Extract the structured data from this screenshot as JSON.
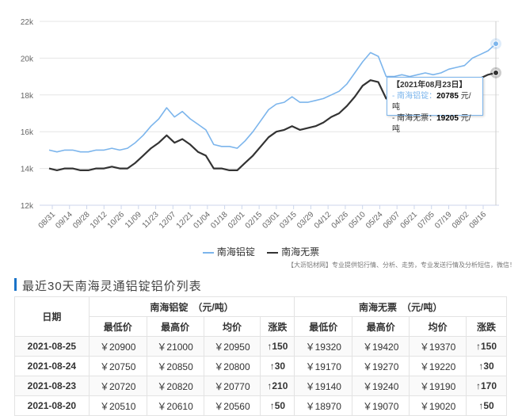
{
  "chart_data": {
    "type": "line",
    "y_ticks": [
      "12k",
      "14k",
      "16k",
      "18k",
      "20k",
      "22k"
    ],
    "ylim": [
      12000,
      22000
    ],
    "x_tick_labels": [
      "08/31",
      "09/14",
      "09/28",
      "10/12",
      "10/26",
      "11/09",
      "11/23",
      "12/07",
      "12/21",
      "01/04",
      "01/18",
      "02/01",
      "02/15",
      "03/01",
      "03/15",
      "03/29",
      "04/12",
      "04/26",
      "05/10",
      "05/24",
      "06/07",
      "06/21",
      "07/05",
      "07/19",
      "08/02",
      "08/16"
    ],
    "series": [
      {
        "name": "南海铝锭",
        "color": "#7cb5ec",
        "values": [
          15000,
          14900,
          15000,
          15000,
          14900,
          14900,
          15000,
          15000,
          15100,
          15000,
          15100,
          15400,
          15800,
          16300,
          16700,
          17300,
          16800,
          17100,
          16700,
          16400,
          16100,
          15300,
          15200,
          15200,
          15100,
          15500,
          16000,
          16600,
          17200,
          17500,
          17600,
          17900,
          17600,
          17600,
          17700,
          17800,
          18000,
          18200,
          18600,
          19200,
          19800,
          20300,
          20100,
          19000,
          19000,
          19100,
          19000,
          19100,
          19200,
          19100,
          19200,
          19400,
          19500,
          19600,
          20000,
          20200,
          20400,
          20785
        ]
      },
      {
        "name": "南海无票",
        "color": "#333333",
        "values": [
          14000,
          13900,
          14000,
          14000,
          13900,
          13900,
          14000,
          14000,
          14100,
          14000,
          14000,
          14300,
          14700,
          15100,
          15400,
          15800,
          15400,
          15600,
          15300,
          14900,
          14700,
          14000,
          14000,
          13900,
          13900,
          14300,
          14700,
          15200,
          15700,
          16000,
          16100,
          16300,
          16100,
          16200,
          16300,
          16500,
          16800,
          17000,
          17400,
          17900,
          18500,
          18800,
          18700,
          17800,
          17800,
          17900,
          17800,
          17900,
          18000,
          18000,
          18100,
          18200,
          18300,
          18500,
          18700,
          18900,
          19100,
          19205
        ]
      }
    ],
    "legend": [
      "南海铝锭",
      "南海无票"
    ]
  },
  "tooltip": {
    "date": "【2021年08月23日】",
    "row1_name": "- 南海铝锭：",
    "row1_value": "20785",
    "row1_unit": "元/吨",
    "row2_name": "- 南海无票：",
    "row2_value": "19205",
    "row2_unit": "元/吨"
  },
  "footnote": "【大沥铝材网】专业提供铝行情、分析、走势，专业发送行情及分析短信，微信！",
  "section_title": "最近30天南海灵通铝锭铝价列表",
  "table": {
    "date_header": "日期",
    "group1": "南海铝锭　（元/吨）",
    "group2": "南海无票　（元/吨）",
    "sub_headers": [
      "最低价",
      "最高价",
      "均价",
      "涨跌",
      "最低价",
      "最高价",
      "均价",
      "涨跌"
    ],
    "rows": [
      {
        "date": "2021-08-25",
        "c": [
          "￥20900",
          "￥21000",
          "￥20950",
          "↑150",
          "￥19320",
          "￥19420",
          "￥19370",
          "↑150"
        ]
      },
      {
        "date": "2021-08-24",
        "c": [
          "￥20750",
          "￥20850",
          "￥20800",
          "↑30",
          "￥19170",
          "￥19270",
          "￥19220",
          "↑30"
        ]
      },
      {
        "date": "2021-08-23",
        "c": [
          "￥20720",
          "￥20820",
          "￥20770",
          "↑210",
          "￥19140",
          "￥19240",
          "￥19190",
          "↑170"
        ]
      },
      {
        "date": "2021-08-20",
        "c": [
          "￥20510",
          "￥20610",
          "￥20560",
          "↑50",
          "￥18970",
          "￥19070",
          "￥19020",
          "↑50"
        ]
      }
    ]
  }
}
